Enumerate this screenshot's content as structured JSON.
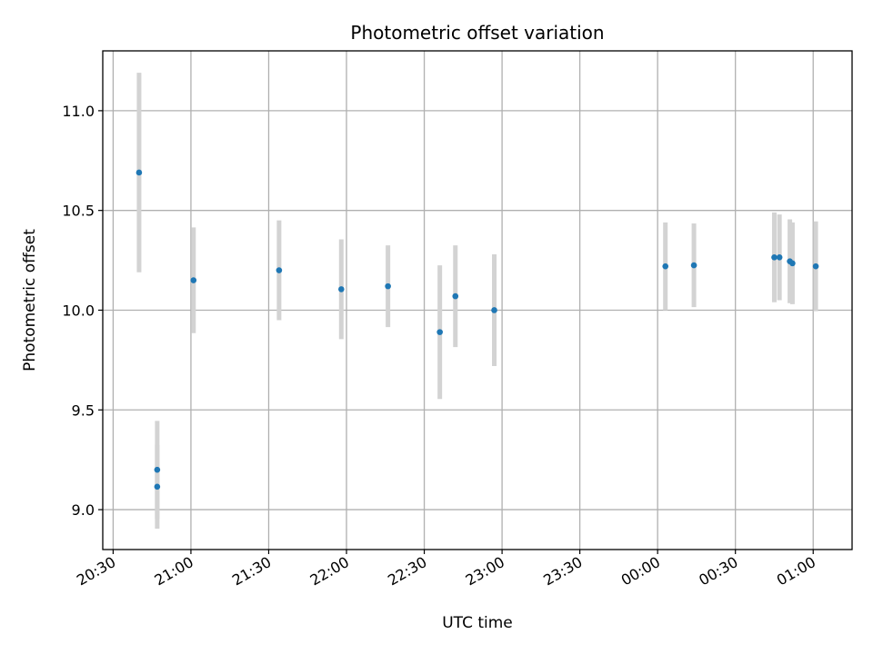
{
  "chart_data": {
    "type": "scatter",
    "title": "Photometric offset variation",
    "xlabel": "UTC time",
    "ylabel": "Photometric offset",
    "grid": true,
    "legend": "none",
    "xlim": [
      "20:26",
      "01:15"
    ],
    "ylim": [
      8.8,
      11.3
    ],
    "x_ticks": [
      "20:30",
      "21:00",
      "21:30",
      "22:00",
      "22:30",
      "23:00",
      "23:30",
      "00:00",
      "00:30",
      "01:00"
    ],
    "y_ticks": [
      "9.0",
      "9.5",
      "10.0",
      "10.5",
      "11.0"
    ],
    "series": [
      {
        "marker_color": "#1f77b4",
        "errorbar_color": "#d3d3d3",
        "points": [
          {
            "t": "20:40",
            "y": 10.69,
            "err": 0.5
          },
          {
            "t": "20:47",
            "y": 9.115,
            "err": 0.21
          },
          {
            "t": "20:47",
            "y": 9.2,
            "err": 0.245
          },
          {
            "t": "21:01",
            "y": 10.15,
            "err": 0.265
          },
          {
            "t": "21:34",
            "y": 10.2,
            "err": 0.25
          },
          {
            "t": "21:58",
            "y": 10.105,
            "err": 0.25
          },
          {
            "t": "22:16",
            "y": 10.12,
            "err": 0.205
          },
          {
            "t": "22:36",
            "y": 9.89,
            "err": 0.335
          },
          {
            "t": "22:42",
            "y": 10.07,
            "err": 0.255
          },
          {
            "t": "22:57",
            "y": 10.0,
            "err": 0.28
          },
          {
            "t": "00:03",
            "y": 10.22,
            "err": 0.22
          },
          {
            "t": "00:14",
            "y": 10.225,
            "err": 0.21
          },
          {
            "t": "00:45",
            "y": 10.265,
            "err": 0.225
          },
          {
            "t": "00:47",
            "y": 10.265,
            "err": 0.215
          },
          {
            "t": "00:51",
            "y": 10.245,
            "err": 0.21
          },
          {
            "t": "00:52",
            "y": 10.235,
            "err": 0.205
          },
          {
            "t": "01:01",
            "y": 10.22,
            "err": 0.225
          }
        ]
      }
    ]
  }
}
